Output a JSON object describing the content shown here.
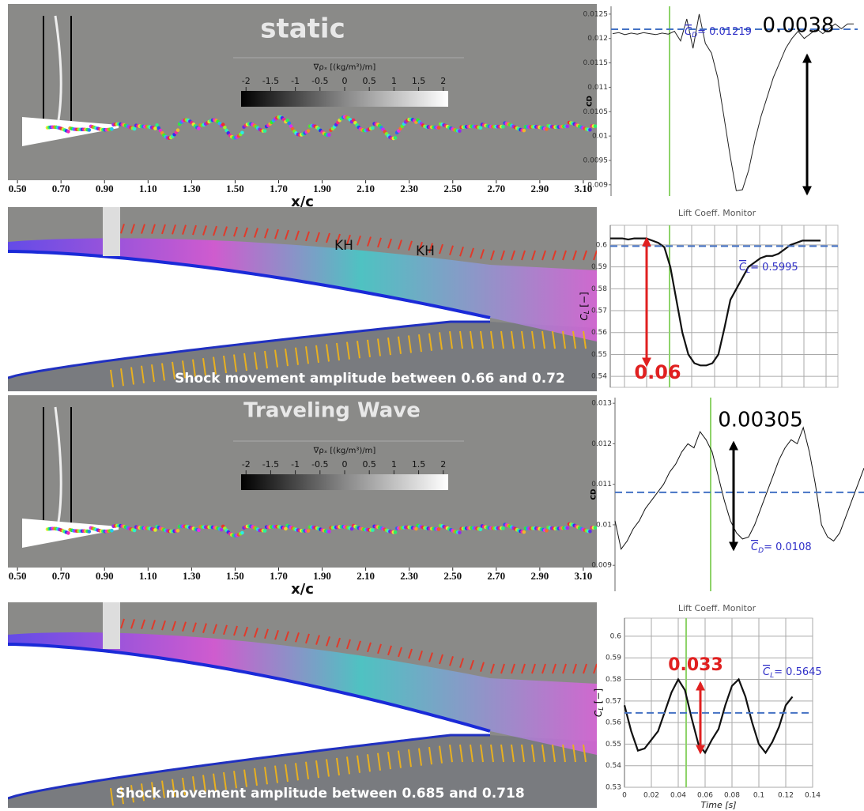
{
  "chart_data": [
    {
      "type": "flowfield",
      "title": "static",
      "colorbar": {
        "label": "∇ρₓ [(kg/m³)/m]",
        "clim": [
          -2.1,
          2.1
        ],
        "ticks": [
          -2,
          -1.5,
          -1,
          -0.5,
          0,
          0.5,
          1,
          1.5,
          2
        ]
      },
      "xlabel": "x/c",
      "xlim": [
        0.456,
        3.162
      ],
      "xticks": [
        {
          "value": 0.5,
          "label": "0.50"
        },
        {
          "value": 0.7,
          "label": "0.70"
        },
        {
          "value": 0.9,
          "label": "0.90"
        },
        {
          "value": 1.1,
          "label": "1.10"
        },
        {
          "value": 1.3,
          "label": "1.30"
        },
        {
          "value": 1.5,
          "label": "1.50"
        },
        {
          "value": 1.7,
          "label": "1.70"
        },
        {
          "value": 1.9,
          "label": "1.90"
        },
        {
          "value": 2.1,
          "label": "2.10"
        },
        {
          "value": 2.3,
          "label": "2.30"
        },
        {
          "value": 2.5,
          "label": "2.50"
        },
        {
          "value": 2.7,
          "label": "2.70"
        },
        {
          "value": 2.9,
          "label": "2.90"
        },
        {
          "value": 3.1,
          "label": "3.10"
        }
      ]
    },
    {
      "type": "line",
      "ylabel": "CD",
      "color": "#222222",
      "ylim": [
        0.00877,
        0.01266
      ],
      "yticks": [
        0.009,
        0.0095,
        0.01,
        0.0105,
        0.011,
        0.0115,
        0.012,
        0.0125
      ],
      "values": [
        0.0121,
        0.01212,
        0.01208,
        0.01211,
        0.01209,
        0.01212,
        0.0121,
        0.01208,
        0.01211,
        0.01209,
        0.01215,
        0.01195,
        0.0124,
        0.0118,
        0.0125,
        0.0119,
        0.0117,
        0.0112,
        0.0104,
        0.0096,
        0.00888,
        0.0089,
        0.0093,
        0.0099,
        0.0104,
        0.0108,
        0.0112,
        0.0115,
        0.0118,
        0.012,
        0.01215,
        0.012,
        0.0121,
        0.0122,
        0.0121,
        0.0122,
        0.0123,
        0.0122,
        0.0123,
        0.0123
      ],
      "mean": 0.01219,
      "mean_label": {
        "symbol": "C",
        "sub": "D",
        "text": "= 0.01219"
      },
      "annotation": "0.0038"
    },
    {
      "type": "flowfield",
      "annotations": [
        "KH",
        "KH"
      ],
      "caption": "Shock movement amplitude between 0.66 and 0.72"
    },
    {
      "type": "line",
      "title": "Lift Coeff. Monitor",
      "ylabel": {
        "symbol": "C",
        "sub": "L",
        "text": " [−]"
      },
      "color": "#111111",
      "grid": true,
      "ylim": [
        0.535,
        0.609
      ],
      "yticks": [
        0.54,
        0.55,
        0.56,
        0.57,
        0.58,
        0.59,
        0.6
      ],
      "values": [
        0.603,
        0.603,
        0.603,
        0.6025,
        0.603,
        0.603,
        0.603,
        0.602,
        0.601,
        0.599,
        0.59,
        0.575,
        0.56,
        0.55,
        0.546,
        0.545,
        0.545,
        0.546,
        0.55,
        0.562,
        0.575,
        0.58,
        0.585,
        0.59,
        0.592,
        0.594,
        0.595,
        0.595,
        0.596,
        0.598,
        0.6,
        0.601,
        0.602,
        0.602,
        0.602,
        0.602
      ],
      "mean": 0.5995,
      "mean_label": {
        "symbol": "C",
        "sub": "L",
        "text": "= 0.5995"
      },
      "annotation": "0.06"
    },
    {
      "type": "flowfield",
      "title": "Traveling Wave",
      "colorbar": {
        "label": "∇ρₓ [(kg/m³)/m]",
        "clim": [
          -2.1,
          2.1
        ],
        "ticks": [
          -2,
          -1.5,
          -1,
          -0.5,
          0,
          0.5,
          1,
          1.5,
          2
        ]
      },
      "xlabel": "x/c",
      "xlim": [
        0.456,
        3.162
      ],
      "xticks": [
        {
          "value": 0.5,
          "label": "0.50"
        },
        {
          "value": 0.7,
          "label": "0.70"
        },
        {
          "value": 0.9,
          "label": "0.90"
        },
        {
          "value": 1.1,
          "label": "1.10"
        },
        {
          "value": 1.3,
          "label": "1.30"
        },
        {
          "value": 1.5,
          "label": "1.50"
        },
        {
          "value": 1.7,
          "label": "1.70"
        },
        {
          "value": 1.9,
          "label": "1.90"
        },
        {
          "value": 2.1,
          "label": "2.10"
        },
        {
          "value": 2.3,
          "label": "2.30"
        },
        {
          "value": 2.5,
          "label": "2.50"
        },
        {
          "value": 2.7,
          "label": "2.70"
        },
        {
          "value": 2.9,
          "label": "2.90"
        },
        {
          "value": 3.1,
          "label": "3.10"
        }
      ]
    },
    {
      "type": "line",
      "ylabel": "CD",
      "color": "#111111",
      "ylim": [
        0.00836,
        0.01314
      ],
      "yticks": [
        0.009,
        0.01,
        0.011,
        0.012,
        0.013
      ],
      "values": [
        0.0101,
        0.0094,
        0.0096,
        0.0099,
        0.0101,
        0.0104,
        0.0106,
        0.0108,
        0.011,
        0.0113,
        0.0115,
        0.0118,
        0.012,
        0.0119,
        0.0123,
        0.0121,
        0.0118,
        0.0112,
        0.0106,
        0.0101,
        0.0098,
        0.00965,
        0.0097,
        0.01,
        0.0104,
        0.0108,
        0.0112,
        0.0116,
        0.0119,
        0.0121,
        0.012,
        0.0124,
        0.0118,
        0.011,
        0.01,
        0.0097,
        0.0096,
        0.0098,
        0.0102,
        0.0106,
        0.011,
        0.0114
      ],
      "mean": 0.0108,
      "mean_label": {
        "symbol": "C",
        "sub": "D",
        "text": "= 0.0108"
      },
      "annotation": "0.00305"
    },
    {
      "type": "flowfield",
      "caption": "Shock movement amplitude between 0.685 and 0.718"
    },
    {
      "type": "line",
      "title": "Lift Coeff. Monitor",
      "ylabel": {
        "symbol": "C",
        "sub": "L",
        "text": " [−]"
      },
      "xlabel": "Time [s]",
      "color": "#111111",
      "grid": true,
      "ylim": [
        0.53,
        0.6084
      ],
      "yticks": [
        0.53,
        0.54,
        0.55,
        0.56,
        0.57,
        0.58,
        0.59,
        0.6
      ],
      "xlim": [
        0,
        0.14
      ],
      "xticks": [
        0,
        0.02,
        0.04,
        0.06,
        0.08,
        0.1,
        0.12,
        0.14
      ],
      "x": [
        0,
        0.005,
        0.01,
        0.015,
        0.02,
        0.025,
        0.03,
        0.035,
        0.04,
        0.045,
        0.05,
        0.055,
        0.06,
        0.065,
        0.07,
        0.075,
        0.08,
        0.085,
        0.09,
        0.095,
        0.1,
        0.105,
        0.11,
        0.115,
        0.12,
        0.125
      ],
      "values": [
        0.568,
        0.556,
        0.547,
        0.548,
        0.552,
        0.556,
        0.565,
        0.574,
        0.58,
        0.575,
        0.562,
        0.55,
        0.546,
        0.552,
        0.557,
        0.568,
        0.577,
        0.58,
        0.572,
        0.56,
        0.55,
        0.546,
        0.551,
        0.558,
        0.568,
        0.572
      ],
      "mean": 0.5645,
      "mean_label": {
        "symbol": "C",
        "sub": "L",
        "text": "= 0.5645"
      },
      "annotation": "0.033"
    }
  ]
}
